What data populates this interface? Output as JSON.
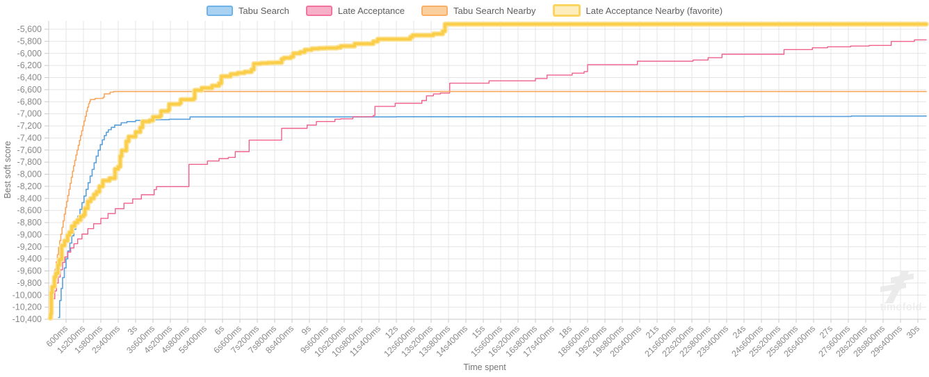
{
  "legend": {
    "items": [
      {
        "label": "Tabu Search",
        "line_color": "#58A0DC",
        "swatch_fill": "#A9D2F2",
        "swatch_border": "#6FB2E8",
        "thick": false
      },
      {
        "label": "Late Acceptance",
        "line_color": "#F0618D",
        "swatch_fill": "#F8AFC8",
        "swatch_border": "#F2749D",
        "thick": false
      },
      {
        "label": "Tabu Search Nearby",
        "line_color": "#FAA75E",
        "swatch_fill": "#FCCF9F",
        "swatch_border": "#FAAF69",
        "thick": false
      },
      {
        "label": "Late Acceptance Nearby (favorite)",
        "line_color": "#FBCE49",
        "swatch_fill": "#FDEDBC",
        "swatch_border": "#FBD560",
        "thick": true
      }
    ]
  },
  "axes": {
    "x_title": "Time spent",
    "y_title": "Best soft score",
    "x_tick_labels": [
      "600ms",
      "1s200ms",
      "1s800ms",
      "2s400ms",
      "3s",
      "3s600ms",
      "4s200ms",
      "4s800ms",
      "5s400ms",
      "6s",
      "6s600ms",
      "7s200ms",
      "7s800ms",
      "8s400ms",
      "9s",
      "9s600ms",
      "10s200ms",
      "10s800ms",
      "11s400ms",
      "12s",
      "12s600ms",
      "13s200ms",
      "13s800ms",
      "14s400ms",
      "15s",
      "15s600ms",
      "16s200ms",
      "16s800ms",
      "17s400ms",
      "18s",
      "18s600ms",
      "19s200ms",
      "19s800ms",
      "20s400ms",
      "21s",
      "21s600ms",
      "22s200ms",
      "22s800ms",
      "23s400ms",
      "24s",
      "24s600ms",
      "25s200ms",
      "25s800ms",
      "26s400ms",
      "27s",
      "27s600ms",
      "28s200ms",
      "28s800ms",
      "29s400ms",
      "30s"
    ],
    "y_tick_labels": [
      "-5,600",
      "-5,800",
      "-6,000",
      "-6,200",
      "-6,400",
      "-6,600",
      "-6,800",
      "-7,000",
      "-7,200",
      "-7,400",
      "-7,600",
      "-7,800",
      "-8,000",
      "-8,200",
      "-8,400",
      "-8,600",
      "-8,800",
      "-9,000",
      "-9,200",
      "-9,400",
      "-9,600",
      "-9,800",
      "-10,000",
      "-10,200",
      "-10,400"
    ]
  },
  "watermark": {
    "text": "timefold"
  },
  "chart_data": {
    "type": "line",
    "step": "after",
    "title": "",
    "xlabel": "Time spent",
    "ylabel": "Best soft score",
    "x_unit": "milliseconds",
    "xlim": [
      0,
      30000
    ],
    "ylim": [
      -10400,
      -5600
    ],
    "x_tick_interval_ms": 600,
    "y_tick_interval": 200,
    "grid": true,
    "legend_position": "top",
    "series": [
      {
        "name": "Tabu Search",
        "color": "#58A0DC",
        "width": 1.6,
        "final_score": -7037,
        "points": [
          [
            340,
            -10370
          ],
          [
            380,
            -10090
          ],
          [
            430,
            -9890
          ],
          [
            480,
            -9710
          ],
          [
            540,
            -9550
          ],
          [
            600,
            -9400
          ],
          [
            660,
            -9270
          ],
          [
            730,
            -9140
          ],
          [
            800,
            -9020
          ],
          [
            870,
            -8910
          ],
          [
            940,
            -8800
          ],
          [
            1010,
            -8690
          ],
          [
            1080,
            -8580
          ],
          [
            1150,
            -8470
          ],
          [
            1220,
            -8360
          ],
          [
            1290,
            -8250
          ],
          [
            1360,
            -8140
          ],
          [
            1430,
            -8030
          ],
          [
            1500,
            -7920
          ],
          [
            1570,
            -7810
          ],
          [
            1640,
            -7700
          ],
          [
            1710,
            -7600
          ],
          [
            1780,
            -7510
          ],
          [
            1850,
            -7430
          ],
          [
            1920,
            -7360
          ],
          [
            1990,
            -7305
          ],
          [
            2060,
            -7263
          ],
          [
            2160,
            -7224
          ],
          [
            2280,
            -7186
          ],
          [
            2500,
            -7148
          ],
          [
            2700,
            -7129
          ],
          [
            3000,
            -7109
          ],
          [
            3400,
            -7098
          ],
          [
            4160,
            -7090
          ],
          [
            4880,
            -7052
          ],
          [
            12000,
            -7048
          ],
          [
            24000,
            -7044
          ],
          [
            27700,
            -7037
          ],
          [
            30290,
            -7037
          ]
        ]
      },
      {
        "name": "Late Acceptance",
        "color": "#F0618D",
        "width": 1.4,
        "final_score": -5776,
        "points": [
          [
            60,
            -10380
          ],
          [
            110,
            -10200
          ],
          [
            160,
            -10060
          ],
          [
            210,
            -9930
          ],
          [
            270,
            -9800
          ],
          [
            330,
            -9700
          ],
          [
            400,
            -9580
          ],
          [
            480,
            -9460
          ],
          [
            560,
            -9370
          ],
          [
            650,
            -9290
          ],
          [
            760,
            -9220
          ],
          [
            870,
            -9150
          ],
          [
            1000,
            -9070
          ],
          [
            1150,
            -8990
          ],
          [
            1350,
            -8900
          ],
          [
            1550,
            -8820
          ],
          [
            1800,
            -8730
          ],
          [
            2050,
            -8650
          ],
          [
            2300,
            -8570
          ],
          [
            2600,
            -8480
          ],
          [
            2900,
            -8410
          ],
          [
            3200,
            -8340
          ],
          [
            3640,
            -8254
          ],
          [
            3720,
            -8205
          ],
          [
            4840,
            -7837
          ],
          [
            5480,
            -7780
          ],
          [
            5880,
            -7741
          ],
          [
            6200,
            -7722
          ],
          [
            6440,
            -7626
          ],
          [
            6920,
            -7435
          ],
          [
            8040,
            -7240
          ],
          [
            8920,
            -7186
          ],
          [
            9240,
            -7128
          ],
          [
            9880,
            -7090
          ],
          [
            10080,
            -7083
          ],
          [
            10500,
            -7048
          ],
          [
            11200,
            -7029
          ],
          [
            11260,
            -6876
          ],
          [
            11960,
            -6826
          ],
          [
            12880,
            -6780
          ],
          [
            13040,
            -6703
          ],
          [
            13280,
            -6672
          ],
          [
            13520,
            -6657
          ],
          [
            13840,
            -6493
          ],
          [
            15200,
            -6454
          ],
          [
            16800,
            -6416
          ],
          [
            17200,
            -6359
          ],
          [
            18070,
            -6328
          ],
          [
            18480,
            -6301
          ],
          [
            18600,
            -6186
          ],
          [
            20320,
            -6129
          ],
          [
            22240,
            -6110
          ],
          [
            22760,
            -6071
          ],
          [
            23240,
            -6014
          ],
          [
            25380,
            -5937
          ],
          [
            26360,
            -5907
          ],
          [
            26880,
            -5891
          ],
          [
            27680,
            -5879
          ],
          [
            28320,
            -5868
          ],
          [
            29080,
            -5803
          ],
          [
            29880,
            -5776
          ],
          [
            30290,
            -5776
          ]
        ]
      },
      {
        "name": "Tabu Search Nearby",
        "color": "#FAA75E",
        "width": 1.6,
        "final_score": -6631,
        "points": [
          [
            70,
            -10380
          ],
          [
            90,
            -10150
          ],
          [
            110,
            -9950
          ],
          [
            140,
            -9840
          ],
          [
            180,
            -9700
          ],
          [
            220,
            -9570
          ],
          [
            260,
            -9450
          ],
          [
            300,
            -9330
          ],
          [
            340,
            -9210
          ],
          [
            380,
            -9100
          ],
          [
            420,
            -8990
          ],
          [
            460,
            -8880
          ],
          [
            500,
            -8770
          ],
          [
            540,
            -8660
          ],
          [
            580,
            -8550
          ],
          [
            620,
            -8450
          ],
          [
            660,
            -8350
          ],
          [
            700,
            -8250
          ],
          [
            740,
            -8150
          ],
          [
            780,
            -8050
          ],
          [
            820,
            -7950
          ],
          [
            860,
            -7860
          ],
          [
            900,
            -7770
          ],
          [
            940,
            -7680
          ],
          [
            980,
            -7600
          ],
          [
            1020,
            -7520
          ],
          [
            1060,
            -7440
          ],
          [
            1100,
            -7360
          ],
          [
            1140,
            -7280
          ],
          [
            1180,
            -7200
          ],
          [
            1220,
            -7120
          ],
          [
            1260,
            -7040
          ],
          [
            1300,
            -6960
          ],
          [
            1340,
            -6890
          ],
          [
            1380,
            -6830
          ],
          [
            1410,
            -6795
          ],
          [
            1440,
            -6764
          ],
          [
            1600,
            -6745
          ],
          [
            1880,
            -6726
          ],
          [
            1920,
            -6669
          ],
          [
            2120,
            -6642
          ],
          [
            2240,
            -6631
          ],
          [
            30290,
            -6631
          ]
        ]
      },
      {
        "name": "Late Acceptance Nearby (favorite)",
        "color": "#FBCE49",
        "halo_color": "#FCE39B",
        "width": 4,
        "halo_width": 7.5,
        "final_score": -5516,
        "points": [
          [
            50,
            -10380
          ],
          [
            70,
            -10310
          ],
          [
            90,
            -9960
          ],
          [
            120,
            -9864
          ],
          [
            200,
            -9700
          ],
          [
            250,
            -9640
          ],
          [
            320,
            -9500
          ],
          [
            370,
            -9410
          ],
          [
            450,
            -9180
          ],
          [
            550,
            -9100
          ],
          [
            650,
            -9010
          ],
          [
            720,
            -8960
          ],
          [
            800,
            -8860
          ],
          [
            900,
            -8800
          ],
          [
            1000,
            -8757
          ],
          [
            1100,
            -8700
          ],
          [
            1200,
            -8670
          ],
          [
            1250,
            -8565
          ],
          [
            1350,
            -8450
          ],
          [
            1450,
            -8400
          ],
          [
            1560,
            -8335
          ],
          [
            1650,
            -8290
          ],
          [
            1750,
            -8200
          ],
          [
            1870,
            -8105
          ],
          [
            2100,
            -8067
          ],
          [
            2290,
            -7914
          ],
          [
            2400,
            -7875
          ],
          [
            2470,
            -7700
          ],
          [
            2520,
            -7608
          ],
          [
            2680,
            -7454
          ],
          [
            2760,
            -7378
          ],
          [
            3000,
            -7300
          ],
          [
            3160,
            -7224
          ],
          [
            3240,
            -7129
          ],
          [
            3480,
            -7109
          ],
          [
            3600,
            -7052
          ],
          [
            3840,
            -7033
          ],
          [
            3880,
            -6956
          ],
          [
            4120,
            -6937
          ],
          [
            4160,
            -6841
          ],
          [
            4520,
            -6822
          ],
          [
            4560,
            -6764
          ],
          [
            5000,
            -6745
          ],
          [
            5040,
            -6611
          ],
          [
            5280,
            -6573
          ],
          [
            5640,
            -6535
          ],
          [
            5880,
            -6496
          ],
          [
            5960,
            -6381
          ],
          [
            6280,
            -6343
          ],
          [
            6520,
            -6324
          ],
          [
            6760,
            -6305
          ],
          [
            7000,
            -6267
          ],
          [
            7080,
            -6171
          ],
          [
            7320,
            -6163
          ],
          [
            7560,
            -6155
          ],
          [
            7800,
            -6152
          ],
          [
            8040,
            -6094
          ],
          [
            8120,
            -6075
          ],
          [
            8360,
            -6056
          ],
          [
            8440,
            -5999
          ],
          [
            8680,
            -5979
          ],
          [
            8840,
            -5941
          ],
          [
            9080,
            -5922
          ],
          [
            9320,
            -5915
          ],
          [
            9560,
            -5911
          ],
          [
            9960,
            -5903
          ],
          [
            10080,
            -5879
          ],
          [
            10560,
            -5841
          ],
          [
            11200,
            -5803
          ],
          [
            11360,
            -5764
          ],
          [
            12480,
            -5730
          ],
          [
            12560,
            -5700
          ],
          [
            13280,
            -5677
          ],
          [
            13600,
            -5631
          ],
          [
            13680,
            -5516
          ],
          [
            30290,
            -5516
          ]
        ]
      }
    ]
  }
}
